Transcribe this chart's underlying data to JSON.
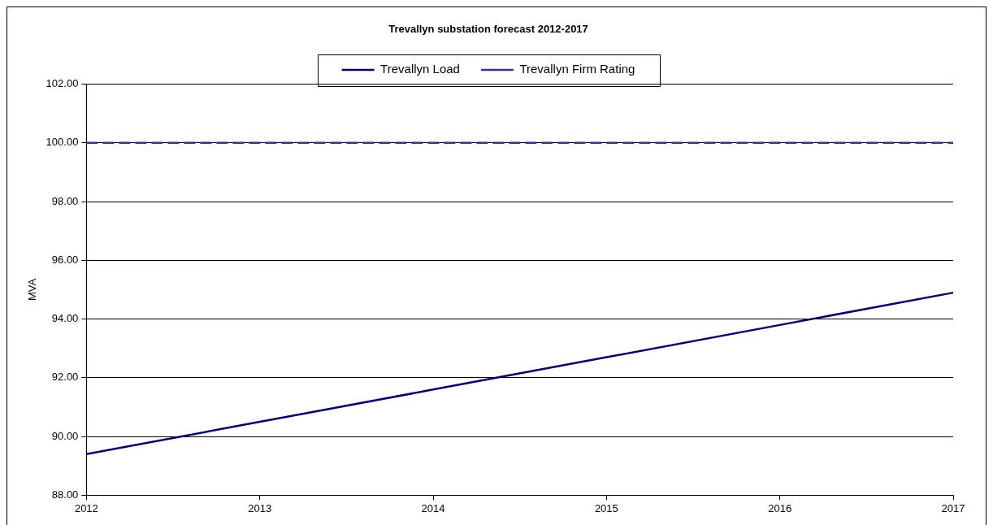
{
  "chart_data": {
    "type": "line",
    "title": "Trevallyn substation forecast 2012-2017",
    "ylabel": "MVA",
    "categories": [
      "2012",
      "2013",
      "2014",
      "2015",
      "2016",
      "2017"
    ],
    "series": [
      {
        "name": "Trevallyn Load",
        "color": "#000080",
        "values": [
          89.4,
          90.5,
          91.6,
          92.7,
          93.8,
          94.9
        ],
        "line_style": "solid"
      },
      {
        "name": "Trevallyn Firm Rating",
        "color": "#3333a0",
        "values": [
          100,
          100,
          100,
          100,
          100,
          100
        ],
        "line_style": "dashed"
      }
    ],
    "ylim": [
      88,
      102
    ],
    "yticks": [
      {
        "value": 88,
        "label": "88.00"
      },
      {
        "value": 90,
        "label": "90.00"
      },
      {
        "value": 92,
        "label": "92.00"
      },
      {
        "value": 94,
        "label": "94.00"
      },
      {
        "value": 96,
        "label": "96.00"
      },
      {
        "value": 98,
        "label": "98.00"
      },
      {
        "value": 100,
        "label": "100.00"
      },
      {
        "value": 102,
        "label": "102.00"
      }
    ],
    "grid": "y",
    "legend": "top",
    "marker": "none"
  }
}
